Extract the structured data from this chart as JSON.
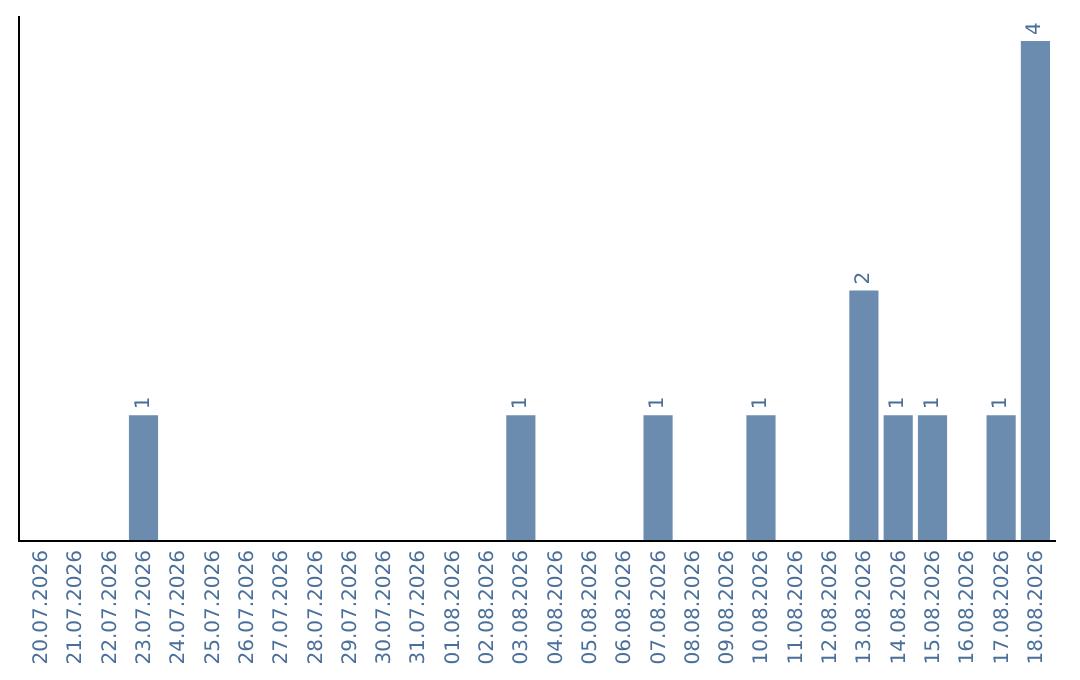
{
  "chart_data": {
    "type": "bar",
    "categories": [
      "20.07.2026",
      "21.07.2026",
      "22.07.2026",
      "23.07.2026",
      "24.07.2026",
      "25.07.2026",
      "26.07.2026",
      "27.07.2026",
      "28.07.2026",
      "29.07.2026",
      "30.07.2026",
      "31.07.2026",
      "01.08.2026",
      "02.08.2026",
      "03.08.2026",
      "04.08.2026",
      "05.08.2026",
      "06.08.2026",
      "07.08.2026",
      "08.08.2026",
      "09.08.2026",
      "10.08.2026",
      "11.08.2026",
      "12.08.2026",
      "13.08.2026",
      "14.08.2026",
      "15.08.2026",
      "16.08.2026",
      "17.08.2026",
      "18.08.2026"
    ],
    "values": [
      0,
      0,
      0,
      1,
      0,
      0,
      0,
      0,
      0,
      0,
      0,
      0,
      0,
      0,
      1,
      0,
      0,
      0,
      1,
      0,
      0,
      1,
      0,
      0,
      2,
      1,
      1,
      0,
      1,
      4
    ],
    "value_labels": [
      null,
      null,
      null,
      "1",
      null,
      null,
      null,
      null,
      null,
      null,
      null,
      null,
      null,
      null,
      "1",
      null,
      null,
      null,
      "1",
      null,
      null,
      "1",
      null,
      null,
      "2",
      "1",
      "1",
      null,
      "1",
      "4"
    ],
    "color": "#6b8cae",
    "ylim": [
      0,
      4.2
    ],
    "tick_labels": "x"
  }
}
